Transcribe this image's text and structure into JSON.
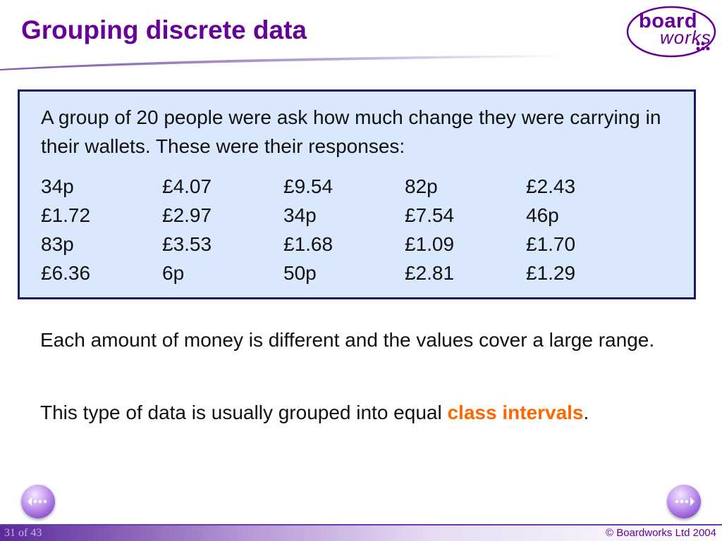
{
  "slide": {
    "title": "Grouping discrete data"
  },
  "logo": {
    "line1": "board",
    "line2": "works"
  },
  "data_box": {
    "intro": "A group of 20 people were ask how much change they were carrying in their wallets. These were their responses:",
    "rows": [
      [
        "34p",
        "£4.07",
        "£9.54",
        "82p",
        "£2.43"
      ],
      [
        "£1.72",
        "£2.97",
        "34p",
        "£7.54",
        "46p"
      ],
      [
        "83p",
        "£3.53",
        "£1.68",
        "£1.09",
        "£1.70"
      ],
      [
        "£6.36",
        "6p",
        "50p",
        "£2.81",
        "£1.29"
      ]
    ]
  },
  "body": {
    "para1": "Each amount of money is different and the values cover a large range.",
    "para2_prefix": "This type of data is usually grouped into equal ",
    "para2_highlight": "class intervals",
    "para2_suffix": "."
  },
  "footer": {
    "slide_number": "31 of 43",
    "copyright": "© Boardworks Ltd 2004"
  },
  "navigation": {
    "prev_icon": "previous-slide-icon",
    "next_icon": "next-slide-icon"
  },
  "colors": {
    "title": "#660099",
    "box_fill": "#d9e8fc",
    "box_border": "#1a1a66",
    "highlight": "#ff6600"
  }
}
